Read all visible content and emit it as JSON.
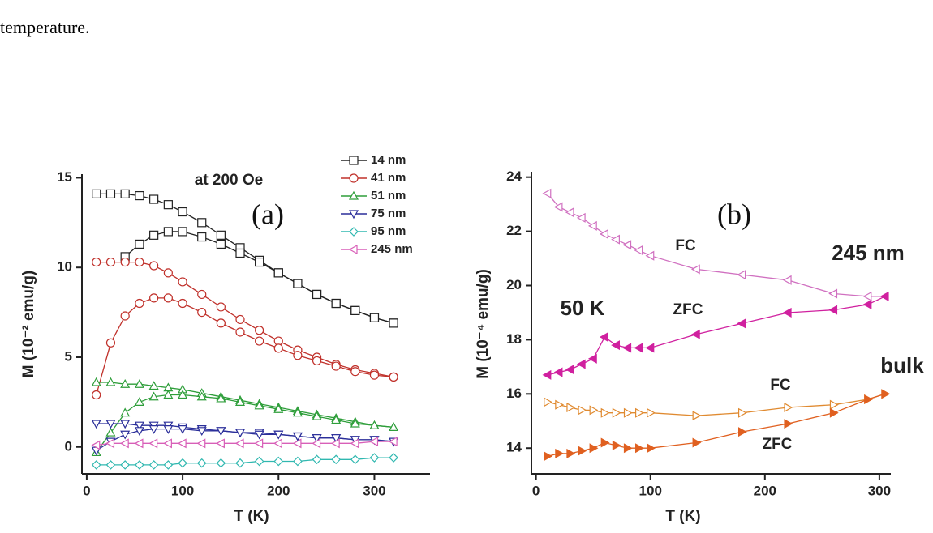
{
  "text": "temperature.",
  "chart_data": [
    {
      "type": "line",
      "title": "(a)",
      "annotation": "at 200 Oe",
      "xlabel": "T (K)",
      "ylabel": "M (10⁻² emu/g)",
      "xlim": [
        -5,
        358
      ],
      "ylim": [
        -1.5,
        15.2
      ],
      "xticks": [
        0,
        100,
        200,
        300
      ],
      "yticks": [
        0,
        5,
        10,
        15
      ],
      "x": [
        10,
        25,
        40,
        55,
        70,
        85,
        100,
        120,
        140,
        160,
        180,
        200,
        220,
        240,
        260,
        280,
        300,
        320
      ],
      "series": [
        {
          "name": "14 nm",
          "color": "#222222",
          "marker": "square",
          "values": [
            14.1,
            14.1,
            14.1,
            14.0,
            13.8,
            13.5,
            13.1,
            12.5,
            11.8,
            11.1,
            10.4,
            9.7,
            9.1,
            8.5,
            8.0,
            7.6,
            7.2,
            6.9
          ],
          "zfc": [
            null,
            null,
            10.6,
            11.3,
            11.8,
            12.0,
            12.0,
            11.7,
            11.3,
            10.8,
            10.3,
            9.7,
            9.1,
            8.5,
            8.0,
            7.6,
            7.2,
            6.9
          ]
        },
        {
          "name": "41 nm",
          "color": "#c0302a",
          "marker": "circle",
          "values": [
            10.3,
            10.3,
            10.3,
            10.3,
            10.1,
            9.7,
            9.2,
            8.5,
            7.8,
            7.1,
            6.5,
            5.9,
            5.4,
            5.0,
            4.6,
            4.3,
            4.1,
            3.9
          ],
          "zfc": [
            2.9,
            5.8,
            7.3,
            8.0,
            8.3,
            8.3,
            8.0,
            7.5,
            6.9,
            6.4,
            5.9,
            5.5,
            5.1,
            4.8,
            4.5,
            4.2,
            4.0,
            3.9
          ]
        },
        {
          "name": "51 nm",
          "color": "#2e9e3a",
          "marker": "tri-up",
          "values": [
            3.6,
            3.6,
            3.5,
            3.5,
            3.4,
            3.3,
            3.2,
            3.0,
            2.8,
            2.6,
            2.4,
            2.2,
            2.0,
            1.8,
            1.6,
            1.4,
            1.2,
            1.1
          ],
          "zfc": [
            -0.3,
            0.8,
            1.9,
            2.5,
            2.8,
            2.9,
            2.9,
            2.8,
            2.7,
            2.5,
            2.3,
            2.1,
            1.9,
            1.7,
            1.5,
            1.3,
            1.2,
            1.1
          ]
        },
        {
          "name": "75 nm",
          "color": "#2b2f9a",
          "marker": "tri-down",
          "values": [
            1.3,
            1.3,
            1.3,
            1.2,
            1.2,
            1.2,
            1.1,
            1.0,
            0.9,
            0.8,
            0.8,
            0.7,
            0.6,
            0.5,
            0.5,
            0.4,
            0.4,
            0.3
          ],
          "zfc": [
            -0.2,
            0.3,
            0.7,
            0.9,
            1.0,
            1.0,
            1.0,
            0.9,
            0.9,
            0.8,
            0.7,
            0.7,
            0.6,
            0.5,
            0.5,
            0.4,
            0.4,
            0.3
          ]
        },
        {
          "name": "95 nm",
          "color": "#30b8b0",
          "marker": "diamond",
          "values": [
            -1.0,
            -1.0,
            -1.0,
            -1.0,
            -1.0,
            -1.0,
            -0.9,
            -0.9,
            -0.9,
            -0.9,
            -0.8,
            -0.8,
            -0.8,
            -0.7,
            -0.7,
            -0.7,
            -0.6,
            -0.6
          ]
        },
        {
          "name": "245 nm",
          "color": "#d85fb8",
          "marker": "tri-left",
          "values": [
            0.1,
            0.2,
            0.2,
            0.2,
            0.2,
            0.2,
            0.2,
            0.2,
            0.2,
            0.2,
            0.2,
            0.2,
            0.2,
            0.2,
            0.2,
            0.2,
            0.3,
            0.3
          ]
        }
      ]
    },
    {
      "type": "line",
      "title": "(b)",
      "xlabel": "T (K)",
      "ylabel": "M (10⁻⁴ emu/g)",
      "xlim": [
        -4,
        310
      ],
      "ylim": [
        13.05,
        24.2
      ],
      "xticks": [
        0,
        100,
        200,
        300
      ],
      "yticks": [
        14,
        16,
        18,
        20,
        22,
        24
      ],
      "annotations": [
        "FC",
        "ZFC",
        "245 nm",
        "50 K",
        "bulk",
        "FC",
        "ZFC"
      ],
      "x": [
        10,
        20,
        30,
        40,
        50,
        60,
        70,
        80,
        90,
        100,
        140,
        180,
        220,
        260,
        290,
        305
      ],
      "series": [
        {
          "color": "#d070c0",
          "marker": "tri-left",
          "filled": false,
          "values": [
            23.4,
            22.9,
            22.7,
            22.5,
            22.2,
            21.9,
            21.7,
            21.5,
            21.3,
            21.1,
            20.6,
            20.4,
            20.2,
            19.7,
            19.6,
            19.6
          ]
        },
        {
          "color": "#d0209f",
          "marker": "tri-left",
          "filled": true,
          "values": [
            16.7,
            16.8,
            16.9,
            17.1,
            17.3,
            18.1,
            17.8,
            17.7,
            17.7,
            17.7,
            18.2,
            18.6,
            19.0,
            19.1,
            19.3,
            19.6
          ]
        },
        {
          "color": "#e08a30",
          "marker": "tri-right",
          "filled": false,
          "values": [
            15.7,
            15.6,
            15.5,
            15.4,
            15.4,
            15.3,
            15.3,
            15.3,
            15.3,
            15.3,
            15.2,
            15.3,
            15.5,
            15.6,
            15.8,
            16.0
          ]
        },
        {
          "color": "#e06020",
          "marker": "tri-right",
          "filled": true,
          "values": [
            13.7,
            13.8,
            13.8,
            13.9,
            14.0,
            14.2,
            14.1,
            14.0,
            14.0,
            14.0,
            14.2,
            14.6,
            14.9,
            15.3,
            15.8,
            16.0
          ]
        }
      ]
    }
  ]
}
